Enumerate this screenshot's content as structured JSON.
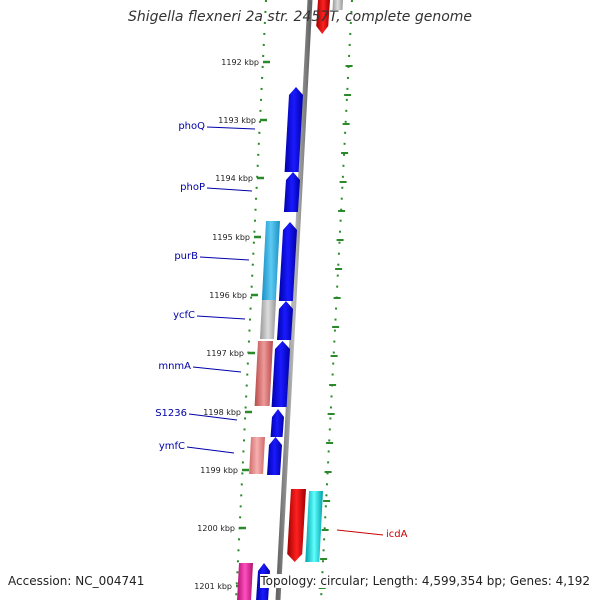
{
  "title": "Shigella flexneri 2a str. 2457T, complete genome",
  "accession_text": "Accession: NC_004741",
  "topology_text": "Topology: circular; Length: 4,599,354 bp; Genes: 4,192",
  "colors": {
    "forward_strand": "#0000e6",
    "reverse_cyan": "#36b7e6",
    "reverse_gray": "#bbbbbb",
    "reverse_salmon": "#d96a6a",
    "reverse_pink": "#e98a8a",
    "magenta": "#e0209a",
    "highlight_red": "#e00000",
    "highlight_cyan": "#00d8e0",
    "tick_green": "#2a8a2a",
    "backbone_gray": "#888888",
    "label_blue": "#0000aa",
    "label_red": "#cc0000"
  },
  "ticks": [
    "1192 kbp",
    "1193 kbp",
    "1194 kbp",
    "1195 kbp",
    "1196 kbp",
    "1197 kbp",
    "1198 kbp",
    "1199 kbp",
    "1200 kbp",
    "1201 kbp"
  ],
  "gene_labels": [
    {
      "name": "phoQ",
      "side": "left"
    },
    {
      "name": "phoP",
      "side": "left"
    },
    {
      "name": "purB",
      "side": "left"
    },
    {
      "name": "ycfC",
      "side": "left"
    },
    {
      "name": "mnmA",
      "side": "left"
    },
    {
      "name": "S1236",
      "side": "left"
    },
    {
      "name": "ymfC",
      "side": "left"
    },
    {
      "name": "icdA",
      "side": "right"
    }
  ]
}
